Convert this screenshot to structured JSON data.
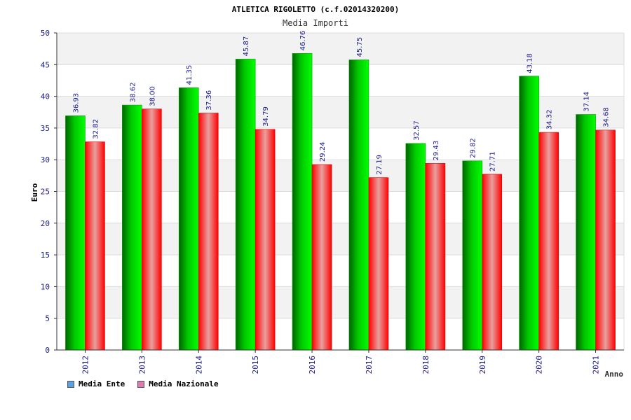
{
  "chart_data": {
    "type": "bar",
    "title": "ATLETICA RIGOLETTO (c.f.02014320200)",
    "subtitle": "Media Importi",
    "xlabel": "Anno",
    "ylabel": "Euro",
    "ylim": [
      0,
      50
    ],
    "yticks": [
      0,
      5,
      10,
      15,
      20,
      25,
      30,
      35,
      40,
      45,
      50
    ],
    "grid": true,
    "legend_position": "bottom-left",
    "categories": [
      "2012",
      "2013",
      "2014",
      "2015",
      "2016",
      "2017",
      "2018",
      "2019",
      "2020",
      "2021"
    ],
    "series": [
      {
        "name": "Media Ente",
        "color": "#00c000",
        "legend_color": "#5aa0e6",
        "values": [
          36.93,
          38.62,
          41.35,
          45.87,
          46.76,
          45.75,
          32.57,
          29.82,
          43.18,
          37.14
        ],
        "labels": [
          "36.93",
          "38.62",
          "41.35",
          "45.87",
          "46.76",
          "45.75",
          "32.57",
          "29.82",
          "43.18",
          "37.14"
        ]
      },
      {
        "name": "Media Nazionale",
        "color": "#ff0000",
        "legend_color": "#e07ab0",
        "values": [
          32.82,
          38.0,
          37.36,
          34.79,
          29.24,
          27.19,
          29.43,
          27.71,
          34.32,
          34.68
        ],
        "labels": [
          "32.82",
          "38.00",
          "37.36",
          "34.79",
          "29.24",
          "27.19",
          "29.43",
          "27.71",
          "34.32",
          "34.68"
        ]
      }
    ]
  }
}
